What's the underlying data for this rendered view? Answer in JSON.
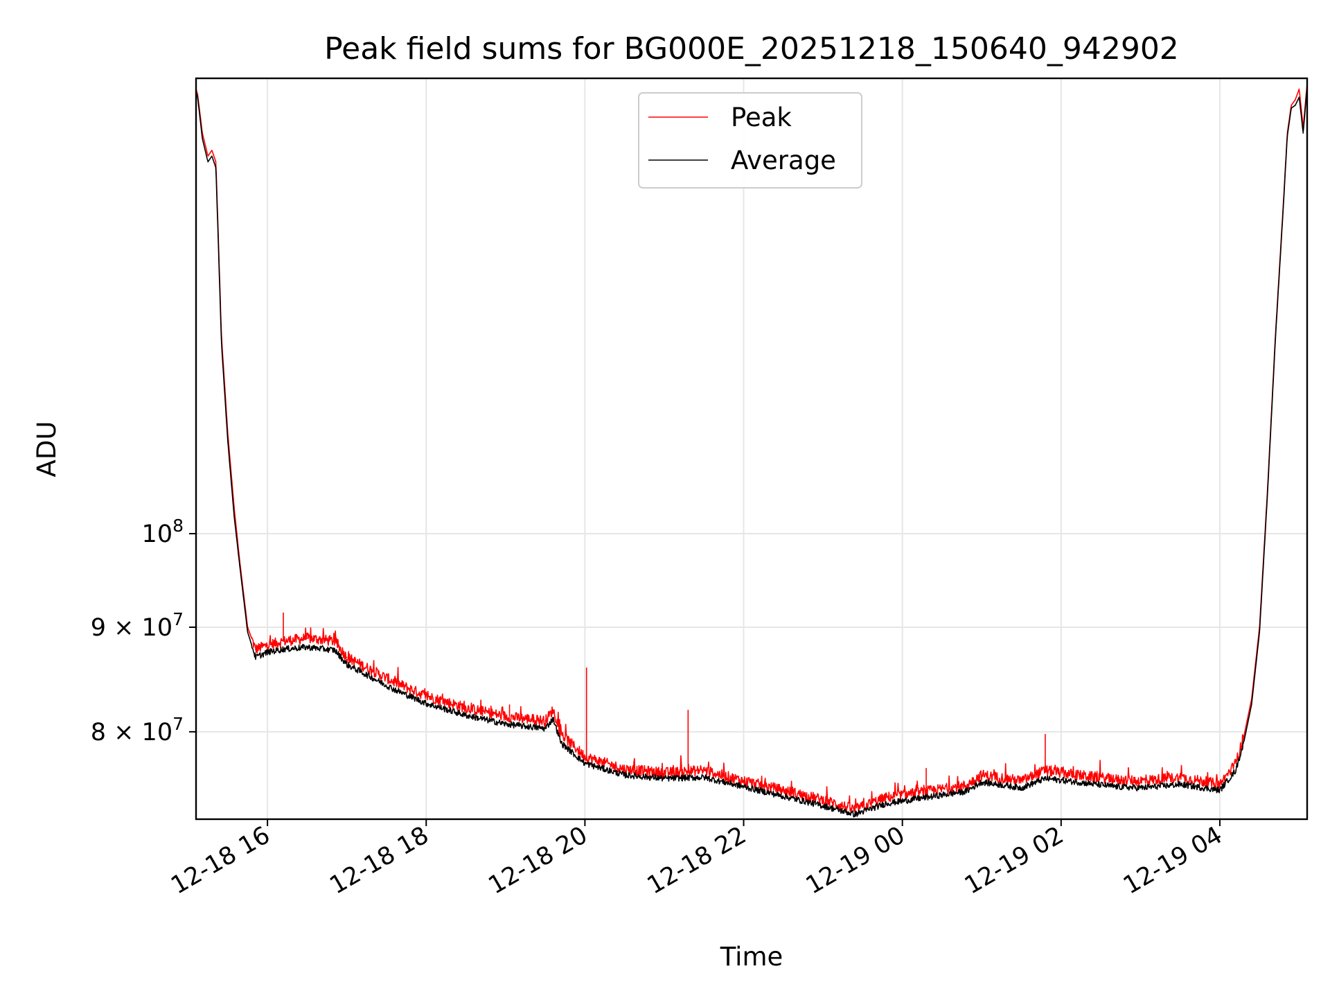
{
  "chart_data": {
    "type": "line",
    "title": "Peak field sums for BG000E_20251218_150640_942902",
    "xlabel": "Time",
    "ylabel": "ADU",
    "yscale": "log",
    "grid": true,
    "legend_position": "upper center",
    "xlim_hours": [
      15.1,
      29.1
    ],
    "ylim": [
      72500000,
      167000000
    ],
    "x_ticks": [
      {
        "hour": 16,
        "label": "12-18 16"
      },
      {
        "hour": 18,
        "label": "12-18 18"
      },
      {
        "hour": 20,
        "label": "12-18 20"
      },
      {
        "hour": 22,
        "label": "12-18 22"
      },
      {
        "hour": 24,
        "label": "12-19 00"
      },
      {
        "hour": 26,
        "label": "12-19 02"
      },
      {
        "hour": 28,
        "label": "12-19 04"
      }
    ],
    "y_ticks": [
      {
        "value": 100000000,
        "label_base": "10",
        "label_exp": "8"
      },
      {
        "value": 90000000,
        "label_base": "9 × 10",
        "label_exp": "7"
      },
      {
        "value": 80000000,
        "label_base": "8 × 10",
        "label_exp": "7"
      }
    ],
    "series": [
      {
        "name": "Peak",
        "color": "#ff0000",
        "x_hours": [
          15.1,
          15.12,
          15.18,
          15.25,
          15.3,
          15.35,
          15.38,
          15.42,
          15.5,
          15.58,
          15.65,
          15.75,
          15.85,
          16.0,
          16.2,
          16.5,
          16.85,
          17.0,
          17.3,
          17.6,
          18.0,
          18.5,
          19.0,
          19.5,
          19.6,
          19.7,
          20.0,
          20.5,
          21.0,
          21.5,
          22.0,
          22.5,
          23.0,
          23.4,
          23.8,
          24.3,
          24.8,
          25.0,
          25.5,
          25.8,
          26.2,
          26.7,
          27.0,
          27.5,
          28.0,
          28.2,
          28.3,
          28.4,
          28.5,
          28.6,
          28.7,
          28.8,
          28.85,
          28.9,
          28.95,
          29.0,
          29.05,
          29.1
        ],
        "values": [
          165000000,
          164000000,
          157000000,
          153000000,
          154000000,
          152000000,
          140000000,
          125000000,
          112000000,
          103000000,
          97000000,
          90000000,
          87800000,
          88200000,
          88600000,
          88900000,
          88600000,
          87000000,
          85800000,
          84600000,
          83300000,
          82200000,
          81400000,
          81000000,
          82000000,
          79800000,
          77800000,
          76700000,
          76400000,
          76600000,
          75700000,
          74900000,
          74100000,
          73300000,
          74300000,
          74800000,
          75300000,
          76200000,
          75700000,
          76600000,
          76200000,
          75800000,
          75700000,
          76000000,
          75400000,
          77200000,
          79500000,
          83000000,
          90000000,
          105000000,
          125000000,
          145000000,
          157000000,
          162000000,
          163000000,
          165000000,
          158000000,
          166000000
        ]
      },
      {
        "name": "Average",
        "color": "#000000",
        "x_hours": [
          15.1,
          15.12,
          15.18,
          15.25,
          15.3,
          15.35,
          15.38,
          15.42,
          15.5,
          15.58,
          15.65,
          15.75,
          15.85,
          16.0,
          16.2,
          16.5,
          16.85,
          17.0,
          17.3,
          17.6,
          18.0,
          18.5,
          19.0,
          19.5,
          19.6,
          19.7,
          20.0,
          20.5,
          21.0,
          21.5,
          22.0,
          22.5,
          23.0,
          23.4,
          23.8,
          24.3,
          24.8,
          25.0,
          25.5,
          25.8,
          26.2,
          26.7,
          27.0,
          27.5,
          28.0,
          28.2,
          28.3,
          28.4,
          28.5,
          28.6,
          28.7,
          28.8,
          28.85,
          28.9,
          28.95,
          29.0,
          29.05,
          29.1
        ],
        "values": [
          164500000,
          163500000,
          156000000,
          152000000,
          153000000,
          151000000,
          139000000,
          124000000,
          111000000,
          102000000,
          96500000,
          89500000,
          87000000,
          87500000,
          87800000,
          88000000,
          87700000,
          86300000,
          85100000,
          83900000,
          82600000,
          81500000,
          80700000,
          80300000,
          81200000,
          79000000,
          77200000,
          76200000,
          75900000,
          76000000,
          75200000,
          74400000,
          73600000,
          72900000,
          73800000,
          74300000,
          74800000,
          75600000,
          75100000,
          75900000,
          75600000,
          75200000,
          75100000,
          75400000,
          74900000,
          76600000,
          79000000,
          82500000,
          89500000,
          104500000,
          124500000,
          144500000,
          156500000,
          161500000,
          162000000,
          163500000,
          157000000,
          165500000
        ]
      }
    ]
  }
}
